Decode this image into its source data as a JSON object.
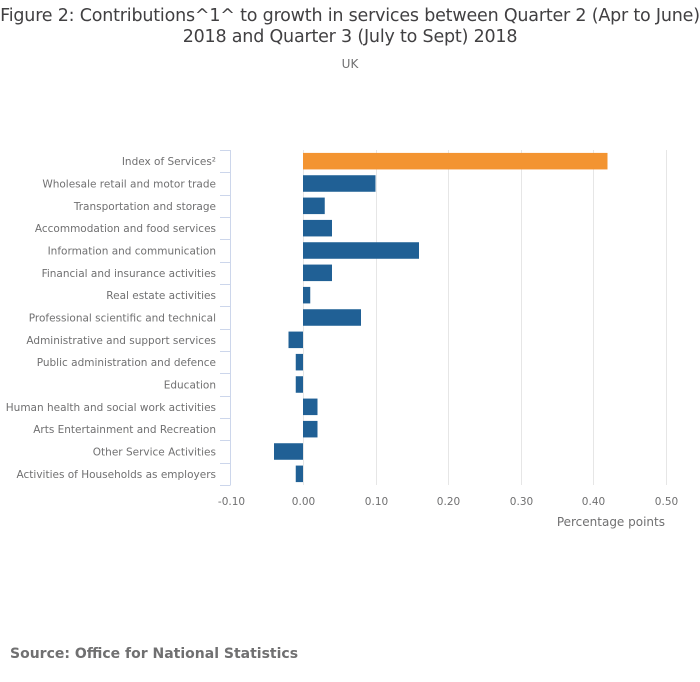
{
  "chart_data": {
    "type": "bar",
    "orientation": "horizontal",
    "title": "Figure 2: Contributions^1^ to growth in services between Quarter 2 (Apr to June) 2018 and Quarter 3 (July to Sept) 2018",
    "subtitle": "UK",
    "xlabel": "Percentage points",
    "ylabel": "",
    "xlim": [
      -0.1,
      0.5
    ],
    "xticks": [
      -0.1,
      0.0,
      0.1,
      0.2,
      0.3,
      0.4,
      0.5
    ],
    "xtick_labels": [
      "-0.10",
      "0.00",
      "0.10",
      "0.20",
      "0.30",
      "0.40",
      "0.50"
    ],
    "grid": true,
    "categories": [
      "Index of Services²",
      "Wholesale retail and motor trade",
      "Transportation and storage",
      "Accommodation and food services",
      "Information and communication",
      "Financial and insurance activities",
      "Real estate activities",
      "Professional scientific and technical",
      "Administrative and support services",
      "Public administration and defence",
      "Education",
      "Human health and social work activities",
      "Arts Entertainment and Recreation",
      "Other Service Activities",
      "Activities of Households as employers"
    ],
    "values": [
      0.42,
      0.1,
      0.03,
      0.04,
      0.16,
      0.04,
      0.01,
      0.08,
      -0.02,
      -0.01,
      -0.01,
      0.02,
      0.02,
      -0.04,
      -0.01
    ],
    "highlight_index": 0,
    "colors": {
      "highlight": "#f39431",
      "default": "#206095",
      "grid": "#e6e6e6",
      "axis": "#ccd6eb"
    }
  },
  "source": "Source: Office for National Statistics"
}
